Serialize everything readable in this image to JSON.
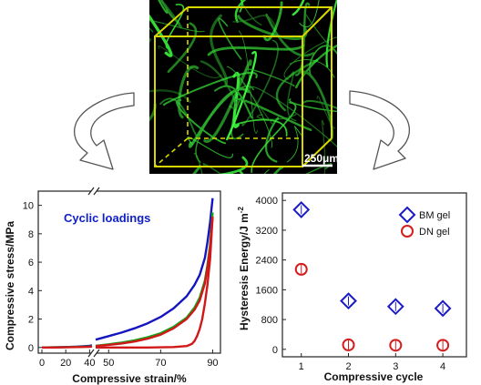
{
  "micrograph": {
    "scale_bar_label": "250μm",
    "colors": {
      "background": "#000000",
      "fiber": "#31c733",
      "cube": "#d8d800",
      "scale_text": "#ffffff"
    }
  },
  "chart_data": [
    {
      "type": "line",
      "title": "",
      "xlabel": "Compressive strain/%",
      "ylabel": "Compressive stress/MPa",
      "annotation": "Cyclic loadings",
      "annotation_color": "#1020c8",
      "x_break": 42,
      "x_segments": [
        [
          0,
          42
        ],
        [
          45,
          93
        ]
      ],
      "xticks": [
        0,
        20,
        40,
        50,
        70,
        90
      ],
      "yticks": [
        0,
        2,
        4,
        6,
        8,
        10
      ],
      "ylim": [
        -0.4,
        11
      ],
      "grid": false,
      "series": [
        {
          "color": "#1515c0",
          "x": [
            0,
            10,
            20,
            30,
            40,
            42,
            45,
            50,
            55,
            60,
            65,
            70,
            75,
            80,
            83,
            85,
            87,
            88,
            89,
            90
          ],
          "y": [
            0,
            0.01,
            0.03,
            0.06,
            0.12,
            0.15,
            0.55,
            0.8,
            1.05,
            1.35,
            1.7,
            2.15,
            2.75,
            3.6,
            4.4,
            5.1,
            6.3,
            7.4,
            8.8,
            10.5
          ]
        },
        {
          "color": "#18a018",
          "x": [
            0,
            10,
            20,
            30,
            40,
            42,
            45,
            50,
            55,
            60,
            65,
            70,
            75,
            80,
            83,
            85,
            87,
            88,
            89,
            90
          ],
          "y": [
            0,
            0.01,
            0.02,
            0.04,
            0.07,
            0.09,
            0.12,
            0.22,
            0.34,
            0.5,
            0.72,
            1.0,
            1.45,
            2.1,
            2.8,
            3.5,
            4.7,
            5.8,
            7.2,
            9.5
          ]
        },
        {
          "color": "#d01818",
          "x": [
            0,
            10,
            20,
            30,
            40,
            42,
            45,
            50,
            55,
            60,
            65,
            70,
            75,
            80,
            83,
            85,
            87,
            88,
            89,
            90
          ],
          "y": [
            0,
            0,
            0.01,
            0.03,
            0.05,
            0.07,
            0.1,
            0.18,
            0.28,
            0.42,
            0.62,
            0.9,
            1.35,
            2.0,
            2.65,
            3.3,
            4.5,
            5.6,
            7.0,
            9.2
          ]
        },
        {
          "color": "#d01818",
          "x": [
            90,
            89,
            88,
            87,
            86,
            85,
            84,
            83,
            82,
            80,
            75,
            70,
            65,
            60,
            55,
            50,
            45
          ],
          "y": [
            9.2,
            6.2,
            4.4,
            3.1,
            2.0,
            1.3,
            0.8,
            0.45,
            0.25,
            0.1,
            0.03,
            0.01,
            0,
            0,
            0,
            0,
            0
          ]
        }
      ]
    },
    {
      "type": "scatter",
      "title": "",
      "xlabel": "Compressive cycle",
      "ylabel": "Hysteresis Energy/J m",
      "ylabel_superscript": "-2",
      "xticks": [
        1,
        2,
        3,
        4
      ],
      "yticks": [
        0,
        800,
        1600,
        2400,
        3200,
        4000
      ],
      "xlim": [
        0.6,
        4.5
      ],
      "ylim": [
        -200,
        4200
      ],
      "grid": false,
      "legend_position": "top-right",
      "series": [
        {
          "name": "BM gel",
          "marker": "diamond",
          "color": "#1a1ac8",
          "x": [
            1,
            2,
            3,
            4
          ],
          "y": [
            3750,
            1300,
            1150,
            1100
          ]
        },
        {
          "name": "DN gel",
          "marker": "circle",
          "color": "#d41c1c",
          "x": [
            1,
            2,
            3,
            4
          ],
          "y": [
            2150,
            120,
            110,
            110
          ]
        }
      ]
    }
  ]
}
